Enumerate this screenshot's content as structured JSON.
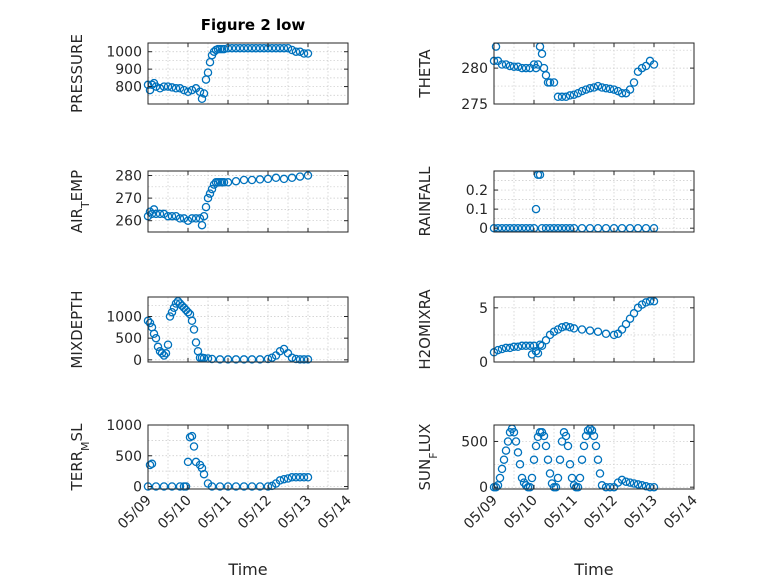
{
  "figure": {
    "title": "Figure 2 low",
    "series_color": "#0072BD",
    "axis_color": "#262626"
  },
  "chart_data": [
    {
      "type": "scatter",
      "ylabel": "PRESSURE",
      "xlabel": "",
      "title": "Figure 2 low",
      "x_ticklabels": [],
      "ylim": [
        700,
        1050
      ],
      "yticks": [
        800,
        900,
        1000
      ],
      "grid": true,
      "x": [
        9.0,
        9.05,
        9.1,
        9.15,
        9.2,
        9.3,
        9.4,
        9.5,
        9.6,
        9.7,
        9.8,
        9.9,
        10.0,
        10.1,
        10.2,
        10.3,
        10.35,
        10.4,
        10.45,
        10.5,
        10.55,
        10.6,
        10.65,
        10.7,
        10.75,
        10.8,
        10.85,
        10.9,
        11.0,
        11.1,
        11.2,
        11.3,
        11.4,
        11.5,
        11.6,
        11.7,
        11.8,
        11.9,
        12.0,
        12.1,
        12.2,
        12.3,
        12.4,
        12.5,
        12.6,
        12.7,
        12.8,
        12.9,
        13.0
      ],
      "values": [
        810,
        780,
        810,
        820,
        800,
        790,
        800,
        800,
        795,
        790,
        790,
        780,
        770,
        780,
        790,
        770,
        730,
        760,
        840,
        880,
        940,
        980,
        1000,
        1010,
        1015,
        1015,
        1015,
        1015,
        1020,
        1020,
        1020,
        1020,
        1020,
        1020,
        1020,
        1020,
        1020,
        1020,
        1020,
        1020,
        1020,
        1020,
        1020,
        1020,
        1010,
        1000,
        1000,
        990,
        990
      ]
    },
    {
      "type": "scatter",
      "ylabel": "THETA",
      "xlabel": "",
      "x_ticklabels": [],
      "ylim": [
        275,
        283.5
      ],
      "yticks": [
        275,
        280
      ],
      "grid": true,
      "x": [
        9.0,
        9.05,
        9.1,
        9.2,
        9.3,
        9.4,
        9.5,
        9.6,
        9.7,
        9.8,
        9.9,
        10.0,
        10.05,
        10.1,
        10.15,
        10.2,
        10.25,
        10.3,
        10.35,
        10.4,
        10.5,
        10.6,
        10.7,
        10.8,
        10.9,
        11.0,
        11.1,
        11.2,
        11.3,
        11.4,
        11.5,
        11.6,
        11.7,
        11.8,
        11.9,
        12.0,
        12.1,
        12.2,
        12.3,
        12.4,
        12.5,
        12.6,
        12.7,
        12.8,
        12.9,
        13.0
      ],
      "values": [
        281,
        283,
        281,
        280.5,
        280.5,
        280.3,
        280.2,
        280.2,
        280,
        280,
        280,
        280.5,
        280,
        280.5,
        283,
        282,
        280,
        279,
        278,
        278,
        278,
        276,
        276,
        276,
        276.2,
        276.3,
        276.5,
        276.8,
        277,
        277.2,
        277.3,
        277.5,
        277.3,
        277.2,
        277.1,
        277,
        276.8,
        276.5,
        276.5,
        277,
        278,
        279.5,
        280,
        280.3,
        281,
        280.5
      ]
    },
    {
      "type": "scatter",
      "ylabel": "AIR_TEMP",
      "xlabel": "",
      "x_ticklabels": [],
      "ylim": [
        255,
        282
      ],
      "yticks": [
        260,
        270,
        280
      ],
      "grid": true,
      "x": [
        9.0,
        9.05,
        9.1,
        9.15,
        9.2,
        9.3,
        9.4,
        9.5,
        9.6,
        9.7,
        9.8,
        9.9,
        10.0,
        10.1,
        10.2,
        10.3,
        10.35,
        10.4,
        10.45,
        10.5,
        10.55,
        10.6,
        10.65,
        10.7,
        10.75,
        10.8,
        10.85,
        10.9,
        11.0,
        11.2,
        11.4,
        11.6,
        11.8,
        12.0,
        12.2,
        12.4,
        12.6,
        12.8,
        13.0
      ],
      "values": [
        262,
        264,
        263,
        265,
        263,
        263,
        263,
        262,
        262,
        262,
        261,
        261,
        260,
        261,
        261,
        261,
        258,
        262,
        266,
        270,
        272,
        274,
        276,
        277,
        277,
        277,
        277,
        277,
        277,
        277.5,
        278,
        278,
        278.3,
        278.5,
        279,
        278.5,
        279,
        279.5,
        280
      ]
    },
    {
      "type": "scatter",
      "ylabel": "RAINFALL",
      "xlabel": "",
      "x_ticklabels": [],
      "ylim": [
        -0.02,
        0.3
      ],
      "yticks": [
        0,
        0.1,
        0.2
      ],
      "grid": true,
      "x": [
        9.0,
        9.1,
        9.2,
        9.3,
        9.4,
        9.5,
        9.6,
        9.7,
        9.8,
        9.9,
        10.0,
        10.05,
        10.1,
        10.15,
        10.2,
        10.3,
        10.4,
        10.5,
        10.6,
        10.7,
        10.8,
        10.9,
        11.0,
        11.2,
        11.4,
        11.6,
        11.8,
        12.0,
        12.2,
        12.4,
        12.6,
        12.8,
        13.0
      ],
      "values": [
        0,
        0,
        0,
        0,
        0,
        0,
        0,
        0,
        0,
        0,
        0,
        0.1,
        0.28,
        0.28,
        0,
        0,
        0,
        0,
        0,
        0,
        0,
        0,
        0,
        0,
        0,
        0,
        0,
        0,
        0,
        0,
        0,
        0,
        0
      ]
    },
    {
      "type": "scatter",
      "ylabel": "MIXDEPTH",
      "xlabel": "",
      "x_ticklabels": [],
      "ylim": [
        -50,
        1450
      ],
      "yticks": [
        0,
        500,
        1000
      ],
      "grid": true,
      "x": [
        9.0,
        9.05,
        9.1,
        9.15,
        9.2,
        9.25,
        9.3,
        9.35,
        9.4,
        9.45,
        9.5,
        9.55,
        9.6,
        9.65,
        9.7,
        9.75,
        9.8,
        9.85,
        9.9,
        9.95,
        10.0,
        10.05,
        10.1,
        10.15,
        10.2,
        10.25,
        10.3,
        10.35,
        10.4,
        10.5,
        10.6,
        10.8,
        11.0,
        11.2,
        11.4,
        11.6,
        11.8,
        12.0,
        12.1,
        12.2,
        12.3,
        12.4,
        12.5,
        12.6,
        12.7,
        12.8,
        12.9,
        13.0
      ],
      "values": [
        900,
        850,
        750,
        600,
        500,
        300,
        200,
        150,
        100,
        150,
        350,
        1000,
        1100,
        1200,
        1300,
        1350,
        1300,
        1250,
        1200,
        1150,
        1100,
        1050,
        900,
        700,
        400,
        200,
        50,
        50,
        40,
        30,
        20,
        10,
        10,
        10,
        10,
        10,
        10,
        20,
        50,
        100,
        200,
        250,
        150,
        50,
        20,
        10,
        10,
        10
      ]
    },
    {
      "type": "scatter",
      "ylabel": "H2OMIXRA",
      "xlabel": "",
      "x_ticklabels": [],
      "ylim": [
        0,
        6
      ],
      "yticks": [
        0,
        5
      ],
      "grid": true,
      "x": [
        9.0,
        9.1,
        9.2,
        9.3,
        9.4,
        9.5,
        9.6,
        9.7,
        9.8,
        9.9,
        9.95,
        10.0,
        10.05,
        10.1,
        10.15,
        10.2,
        10.3,
        10.4,
        10.5,
        10.6,
        10.7,
        10.8,
        10.9,
        11.0,
        11.2,
        11.4,
        11.6,
        11.8,
        12.0,
        12.1,
        12.2,
        12.3,
        12.4,
        12.5,
        12.6,
        12.7,
        12.8,
        12.9,
        13.0
      ],
      "values": [
        0.9,
        1.1,
        1.2,
        1.3,
        1.3,
        1.4,
        1.4,
        1.5,
        1.5,
        1.5,
        0.7,
        1.5,
        1.0,
        0.8,
        1.6,
        1.5,
        2.0,
        2.5,
        2.8,
        3.0,
        3.2,
        3.3,
        3.2,
        3.1,
        3.0,
        2.9,
        2.8,
        2.6,
        2.5,
        2.6,
        3.0,
        3.5,
        4.0,
        4.5,
        5.0,
        5.3,
        5.5,
        5.6,
        5.6
      ]
    },
    {
      "type": "scatter",
      "ylabel": "TERR_MSL",
      "xlabel": "Time",
      "x_ticklabels": [
        "05/09",
        "05/10",
        "05/11",
        "05/12",
        "05/13",
        "05/14"
      ],
      "xlim": [
        9,
        14
      ],
      "ylim": [
        -40,
        1000
      ],
      "yticks": [
        0,
        500,
        1000
      ],
      "grid": true,
      "x": [
        9.0,
        9.05,
        9.1,
        9.2,
        9.4,
        9.6,
        9.8,
        9.9,
        9.95,
        10.0,
        10.05,
        10.1,
        10.15,
        10.2,
        10.3,
        10.35,
        10.4,
        10.5,
        10.6,
        10.8,
        11.0,
        11.2,
        11.4,
        11.6,
        11.8,
        12.0,
        12.1,
        12.2,
        12.3,
        12.4,
        12.5,
        12.6,
        12.7,
        12.8,
        12.9,
        13.0
      ],
      "values": [
        0,
        350,
        370,
        0,
        0,
        0,
        0,
        0,
        0,
        400,
        800,
        820,
        650,
        400,
        350,
        300,
        200,
        50,
        0,
        0,
        0,
        0,
        0,
        0,
        0,
        0,
        10,
        50,
        100,
        120,
        130,
        150,
        150,
        150,
        150,
        150
      ]
    },
    {
      "type": "scatter",
      "ylabel": "SUN_FLUX",
      "xlabel": "Time",
      "x_ticklabels": [
        "05/09",
        "05/10",
        "05/11",
        "05/12",
        "05/13",
        "05/14"
      ],
      "xlim": [
        9,
        14
      ],
      "ylim": [
        -20,
        680
      ],
      "yticks": [
        0,
        500
      ],
      "grid": true,
      "x": [
        9.0,
        9.05,
        9.1,
        9.15,
        9.2,
        9.25,
        9.3,
        9.35,
        9.4,
        9.45,
        9.5,
        9.55,
        9.6,
        9.65,
        9.7,
        9.75,
        9.8,
        9.85,
        9.9,
        9.95,
        10.0,
        10.05,
        10.1,
        10.15,
        10.2,
        10.25,
        10.3,
        10.35,
        10.4,
        10.45,
        10.5,
        10.55,
        10.6,
        10.65,
        10.7,
        10.75,
        10.8,
        10.85,
        10.9,
        10.95,
        11.0,
        11.05,
        11.1,
        11.15,
        11.2,
        11.25,
        11.3,
        11.35,
        11.4,
        11.45,
        11.5,
        11.55,
        11.6,
        11.65,
        11.7,
        11.8,
        11.9,
        12.0,
        12.1,
        12.2,
        12.3,
        12.4,
        12.5,
        12.6,
        12.7,
        12.8,
        12.9,
        13.0
      ],
      "values": [
        0,
        0,
        20,
        100,
        200,
        300,
        400,
        500,
        600,
        640,
        600,
        500,
        380,
        250,
        100,
        50,
        20,
        0,
        0,
        100,
        300,
        450,
        550,
        600,
        600,
        560,
        450,
        300,
        150,
        40,
        0,
        0,
        100,
        300,
        500,
        600,
        560,
        450,
        250,
        100,
        20,
        0,
        0,
        100,
        300,
        450,
        560,
        620,
        640,
        620,
        560,
        450,
        300,
        150,
        20,
        0,
        0,
        0,
        50,
        80,
        60,
        50,
        40,
        30,
        20,
        10,
        0,
        0
      ]
    }
  ]
}
